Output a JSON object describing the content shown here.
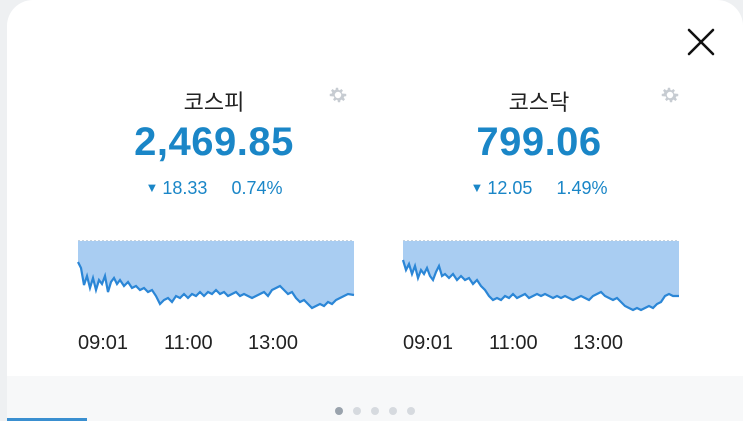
{
  "close": {
    "icon": "close-icon"
  },
  "panels": [
    {
      "name": "코스피",
      "value": "2,469.85",
      "change": "18.33",
      "change_pct": "0.74%",
      "direction": "down",
      "times": [
        "09:01",
        "11:00",
        "13:00"
      ]
    },
    {
      "name": "코스닥",
      "value": "799.06",
      "change": "12.05",
      "change_pct": "1.49%",
      "direction": "down",
      "times": [
        "09:01",
        "11:00",
        "13:00"
      ]
    }
  ],
  "colors": {
    "accent": "#1a86c7",
    "fill": "#a9cdf2",
    "line": "#2b86d6"
  },
  "pager": {
    "count": 5,
    "active": 0
  }
}
